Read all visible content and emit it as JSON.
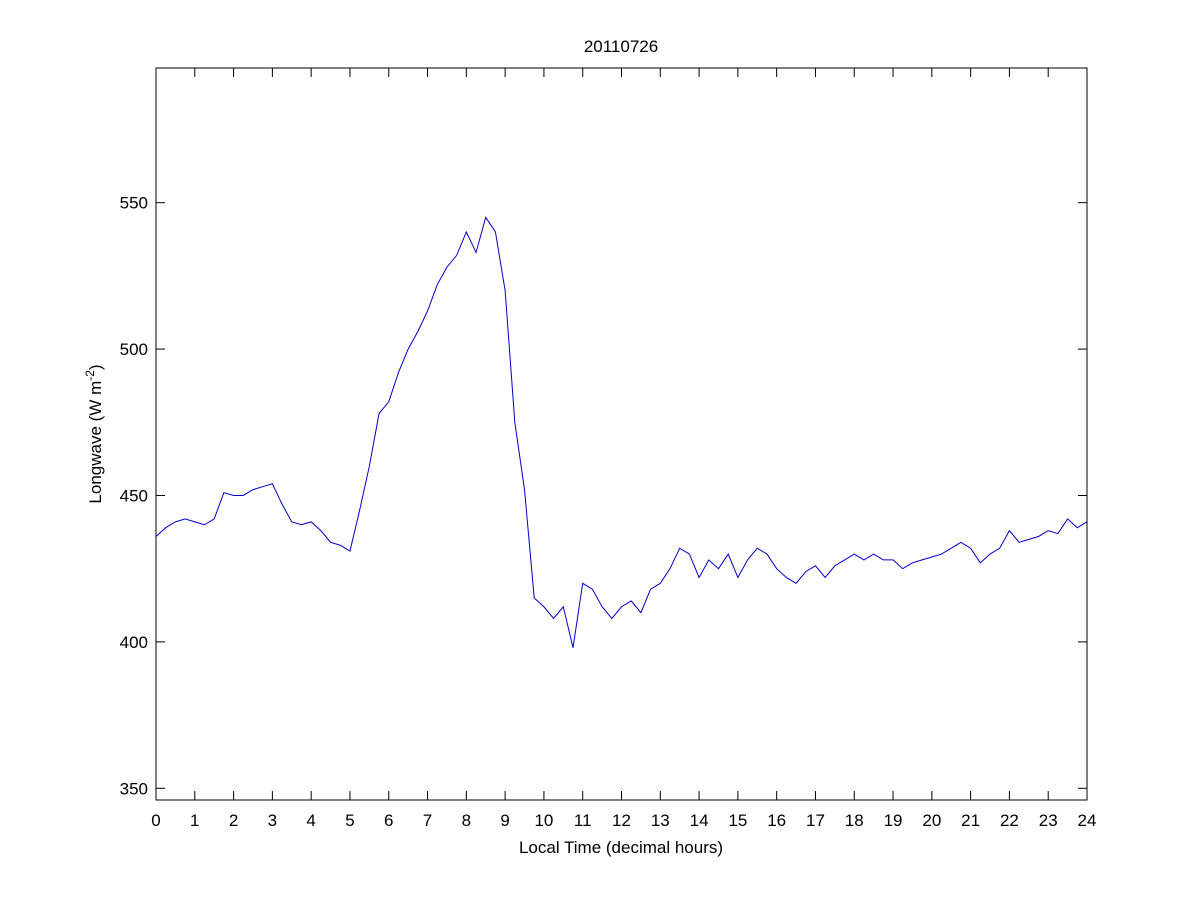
{
  "chart_data": {
    "type": "line",
    "title": "20110726",
    "xlabel": "Local Time (decimal hours)",
    "ylabel": {
      "text": "Longwave (W m",
      "sup": "-2",
      "tail": ")"
    },
    "xlim": [
      0,
      24
    ],
    "ylim": [
      346,
      596
    ],
    "xticks": [
      0,
      1,
      2,
      3,
      4,
      5,
      6,
      7,
      8,
      9,
      10,
      11,
      12,
      13,
      14,
      15,
      16,
      17,
      18,
      19,
      20,
      21,
      22,
      23,
      24
    ],
    "yticks": [
      350,
      400,
      450,
      500,
      550
    ],
    "grid": false,
    "x": [
      0,
      0.25,
      0.5,
      0.75,
      1,
      1.25,
      1.5,
      1.75,
      2,
      2.25,
      2.5,
      2.75,
      3,
      3.25,
      3.5,
      3.75,
      4,
      4.25,
      4.5,
      4.75,
      5,
      5.25,
      5.5,
      5.75,
      6,
      6.25,
      6.5,
      6.75,
      7,
      7.25,
      7.5,
      7.75,
      8,
      8.25,
      8.5,
      8.75,
      9,
      9.25,
      9.5,
      9.75,
      10,
      10.25,
      10.5,
      10.75,
      11,
      11.25,
      11.5,
      11.75,
      12,
      12.25,
      12.5,
      12.75,
      13,
      13.25,
      13.5,
      13.75,
      14,
      14.25,
      14.5,
      14.75,
      15,
      15.25,
      15.5,
      15.75,
      16,
      16.25,
      16.5,
      16.75,
      17,
      17.25,
      17.5,
      17.75,
      18,
      18.25,
      18.5,
      18.75,
      19,
      19.25,
      19.5,
      19.75,
      20,
      20.25,
      20.5,
      20.75,
      21,
      21.25,
      21.5,
      21.75,
      22,
      22.25,
      22.5,
      22.75,
      23,
      23.25,
      23.5,
      23.75,
      24
    ],
    "series": [
      {
        "name": "Longwave",
        "color": "#0000cc",
        "values": [
          436,
          439,
          441,
          442,
          441,
          440,
          442,
          451,
          450,
          450,
          452,
          453,
          454,
          447,
          441,
          440,
          441,
          438,
          434,
          433,
          431,
          445,
          460,
          478,
          482,
          492,
          500,
          506,
          513,
          522,
          528,
          532,
          540,
          533,
          545,
          540,
          520,
          475,
          452,
          415,
          412,
          408,
          412,
          398,
          420,
          418,
          412,
          408,
          412,
          414,
          410,
          418,
          420,
          425,
          432,
          430,
          422,
          428,
          425,
          430,
          422,
          428,
          432,
          430,
          425,
          422,
          420,
          424,
          426,
          422,
          426,
          428,
          430,
          428,
          430,
          428,
          428,
          425,
          427,
          428,
          429,
          430,
          432,
          434,
          432,
          427,
          430,
          432,
          438,
          434,
          435,
          436,
          438,
          437,
          442,
          439,
          441
        ]
      }
    ]
  }
}
